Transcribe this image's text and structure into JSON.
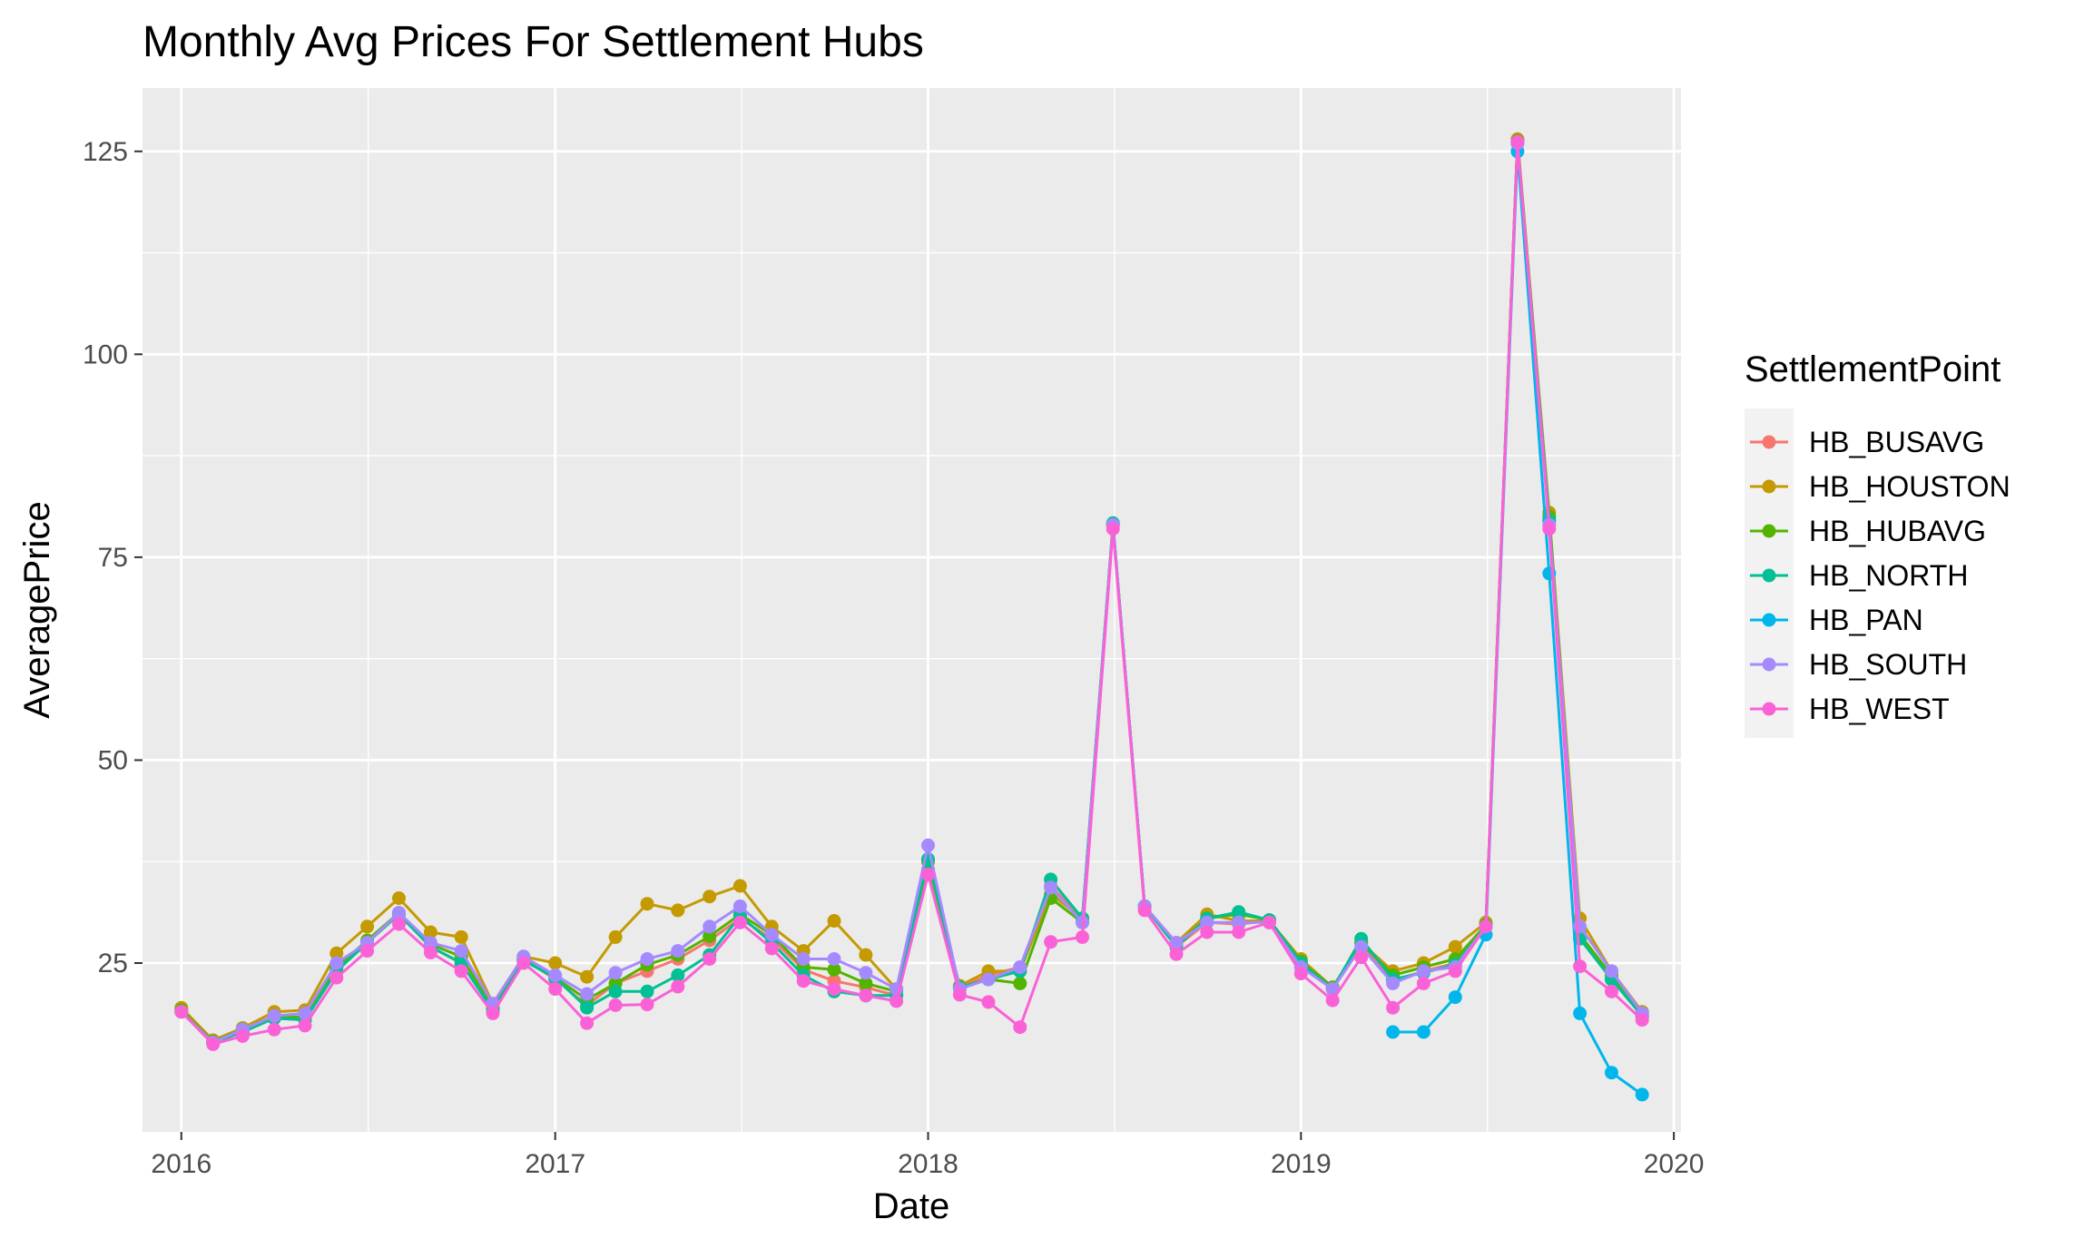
{
  "chart_data": {
    "type": "line",
    "title": "Monthly Avg Prices For Settlement Hubs",
    "xlabel": "Date",
    "ylabel": "AveragePrice",
    "x_ticks": [
      "2016",
      "2017",
      "2018",
      "2019",
      "2020"
    ],
    "y_ticks": [
      "25",
      "50",
      "75",
      "100",
      "125"
    ],
    "xlim": [
      "2015-11-24",
      "2020-01-08"
    ],
    "ylim": [
      4.2,
      132.8
    ],
    "grid": true,
    "legend_title": "SettlementPoint",
    "legend_position": "right",
    "x": [
      "2016-01",
      "2016-02",
      "2016-03",
      "2016-04",
      "2016-05",
      "2016-06",
      "2016-07",
      "2016-08",
      "2016-09",
      "2016-10",
      "2016-11",
      "2016-12",
      "2017-01",
      "2017-02",
      "2017-03",
      "2017-04",
      "2017-05",
      "2017-06",
      "2017-07",
      "2017-08",
      "2017-09",
      "2017-10",
      "2017-11",
      "2017-12",
      "2018-01",
      "2018-02",
      "2018-03",
      "2018-04",
      "2018-05",
      "2018-06",
      "2018-07",
      "2018-08",
      "2018-09",
      "2018-10",
      "2018-11",
      "2018-12",
      "2019-01",
      "2019-02",
      "2019-03",
      "2019-04",
      "2019-05",
      "2019-06",
      "2019-07",
      "2019-08",
      "2019-09",
      "2019-10",
      "2019-11",
      "2019-12"
    ],
    "series": [
      {
        "name": "HB_BUSAVG",
        "color": "#F8766D",
        "values": [
          19.2,
          15.2,
          16.5,
          18.2,
          18.0,
          24.0,
          27.5,
          31.0,
          27.0,
          25.0,
          19.3,
          25.5,
          23.0,
          19.8,
          22.5,
          24.0,
          25.5,
          27.8,
          30.5,
          28.0,
          24.2,
          22.8,
          22.0,
          21.0,
          36.5,
          22.0,
          23.5,
          24.5,
          34.5,
          30.5,
          79.0,
          32.0,
          27.0,
          30.0,
          29.8,
          30.2,
          25.0,
          21.8,
          27.5,
          22.8,
          24.0,
          25.0,
          29.5,
          126.0,
          79.5,
          28.5,
          23.0,
          18.5
        ]
      },
      {
        "name": "HB_HOUSTON",
        "color": "#C49A00",
        "values": [
          19.5,
          15.5,
          17.0,
          19.0,
          19.2,
          26.2,
          29.5,
          33.0,
          28.8,
          28.2,
          20.0,
          25.8,
          25.0,
          23.3,
          28.2,
          32.3,
          31.5,
          33.2,
          34.5,
          29.5,
          26.5,
          30.2,
          26.0,
          21.8,
          36.5,
          22.2,
          24.0,
          24.0,
          33.5,
          30.5,
          79.0,
          32.0,
          27.5,
          31.0,
          30.2,
          30.2,
          25.5,
          22.0,
          27.5,
          24.0,
          25.0,
          27.0,
          30.0,
          126.5,
          80.5,
          30.5,
          24.0,
          19.0
        ]
      },
      {
        "name": "HB_HUBAVG",
        "color": "#53B400",
        "values": [
          19.2,
          15.3,
          16.8,
          18.5,
          18.3,
          24.5,
          27.8,
          31.2,
          27.3,
          25.8,
          19.5,
          25.5,
          23.2,
          20.5,
          22.5,
          24.8,
          26.0,
          28.3,
          31.0,
          28.5,
          24.5,
          24.2,
          22.5,
          21.5,
          37.5,
          22.0,
          23.0,
          22.5,
          33.0,
          30.0,
          79.0,
          32.0,
          27.2,
          30.5,
          31.0,
          30.3,
          25.2,
          22.0,
          27.5,
          23.5,
          24.5,
          25.5,
          29.7,
          126.3,
          80.0,
          28.5,
          23.5,
          18.8
        ]
      },
      {
        "name": "HB_NORTH",
        "color": "#00C094",
        "values": [
          19.0,
          15.2,
          16.5,
          18.2,
          18.0,
          24.0,
          27.5,
          31.0,
          27.0,
          25.0,
          19.2,
          25.3,
          23.2,
          19.5,
          21.5,
          21.5,
          23.5,
          26.0,
          30.8,
          27.5,
          23.5,
          21.5,
          21.0,
          21.0,
          37.8,
          22.0,
          23.0,
          24.0,
          35.3,
          30.5,
          79.2,
          32.0,
          27.0,
          30.5,
          31.3,
          30.3,
          25.0,
          21.8,
          28.0,
          23.0,
          23.8,
          24.8,
          29.5,
          126.0,
          79.5,
          28.0,
          23.0,
          18.5
        ]
      },
      {
        "name": "HB_PAN",
        "color": "#00B6EB",
        "values": [
          null,
          null,
          null,
          null,
          null,
          null,
          null,
          null,
          null,
          null,
          null,
          null,
          null,
          null,
          null,
          null,
          null,
          null,
          null,
          null,
          null,
          null,
          null,
          null,
          null,
          null,
          null,
          null,
          null,
          null,
          null,
          null,
          null,
          null,
          null,
          null,
          null,
          null,
          null,
          16.5,
          16.5,
          20.8,
          28.5,
          125.0,
          73.0,
          18.8,
          11.5,
          8.8
        ]
      },
      {
        "name": "HB_SOUTH",
        "color": "#A58AFF",
        "values": [
          19.0,
          15.2,
          16.8,
          18.5,
          18.8,
          25.0,
          27.5,
          31.2,
          27.5,
          26.5,
          20.0,
          25.8,
          23.5,
          21.2,
          23.8,
          25.5,
          26.5,
          29.5,
          32.0,
          28.5,
          25.5,
          25.5,
          23.8,
          21.8,
          39.5,
          21.8,
          23.0,
          24.5,
          34.3,
          30.0,
          79.0,
          32.0,
          27.5,
          30.0,
          30.0,
          30.0,
          24.5,
          21.8,
          27.0,
          22.5,
          24.0,
          24.5,
          29.5,
          126.0,
          79.0,
          29.5,
          24.0,
          18.8
        ]
      },
      {
        "name": "HB_WEST",
        "color": "#FB61D7",
        "values": [
          19.0,
          15.0,
          16.0,
          16.8,
          17.3,
          23.2,
          26.5,
          29.8,
          26.3,
          24.0,
          18.8,
          25.0,
          21.8,
          17.6,
          19.8,
          19.9,
          22.1,
          25.5,
          30.0,
          26.8,
          22.8,
          21.8,
          21.0,
          20.3,
          35.9,
          21.1,
          20.2,
          17.1,
          27.6,
          28.2,
          78.5,
          31.5,
          26.1,
          28.8,
          28.8,
          30.0,
          23.7,
          20.4,
          25.7,
          19.5,
          22.5,
          24.0,
          29.5,
          126.2,
          78.5,
          24.6,
          21.5,
          18.0
        ]
      }
    ]
  }
}
